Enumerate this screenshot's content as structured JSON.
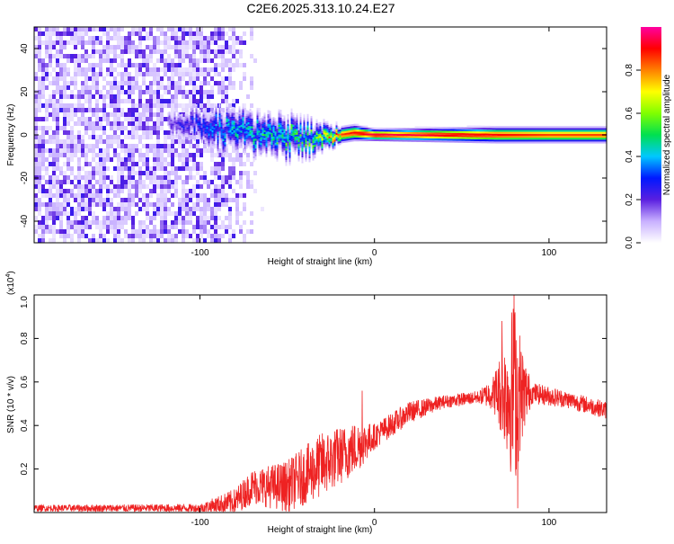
{
  "title": "C2E6.2025.313.10.24.E27",
  "chart_data": [
    {
      "type": "heatmap",
      "name": "spectrogram",
      "xlabel": "Height of straight line (km)",
      "ylabel": "Frequency (Hz)",
      "xlim": [
        -195,
        133
      ],
      "ylim": [
        -50,
        50
      ],
      "xticks": [
        -100,
        0,
        100
      ],
      "yticks": [
        -40,
        -20,
        0,
        20,
        40
      ],
      "noise_region": {
        "x_start": -195,
        "x_end": -90,
        "fade_end": -65
      },
      "track": [
        {
          "x": -118,
          "freq": 5,
          "spread": 3,
          "amp": 0.2
        },
        {
          "x": -100,
          "freq": 5,
          "spread": 4,
          "amp": 0.3
        },
        {
          "x": -90,
          "freq": 3,
          "spread": 5,
          "amp": 0.4
        },
        {
          "x": -70,
          "freq": 1,
          "spread": 5,
          "amp": 0.45
        },
        {
          "x": -50,
          "freq": -1,
          "spread": 5,
          "amp": 0.5
        },
        {
          "x": -35,
          "freq": -2,
          "spread": 4,
          "amp": 0.55
        },
        {
          "x": -20,
          "freq": 0,
          "spread": 2,
          "amp": 0.85
        },
        {
          "x": -12,
          "freq": 1,
          "spread": 2,
          "amp": 0.9
        },
        {
          "x": 0,
          "freq": 0,
          "spread": 1.5,
          "amp": 0.95
        },
        {
          "x": 70,
          "freq": 0,
          "spread": 2,
          "amp": 0.9
        },
        {
          "x": 100,
          "freq": 0,
          "spread": 2,
          "amp": 0.85
        },
        {
          "x": 133,
          "freq": 0,
          "spread": 2,
          "amp": 0.85
        }
      ],
      "colorbar": {
        "label": "Normalized spectral amplitude",
        "ticks": [
          0.0,
          0.2,
          0.4,
          0.6,
          0.8
        ],
        "tick_labels": [
          "0.0",
          "0.2",
          "0.4",
          "0.6",
          "0.8"
        ],
        "range": [
          0,
          1
        ],
        "colors": [
          "#ffffff",
          "#c8b0ff",
          "#5a1fe0",
          "#0018ff",
          "#00c8ff",
          "#00e050",
          "#80ff00",
          "#ffff00",
          "#ff8000",
          "#ff0000",
          "#ff00a0"
        ]
      }
    },
    {
      "type": "line",
      "name": "snr",
      "xlabel": "Height of straight line (km)",
      "ylabel": "SNR (10 * v/v)",
      "scale_label": "(x10",
      "scale_exponent": "4",
      "scale_suffix": ")",
      "xlim": [
        -195,
        133
      ],
      "ylim": [
        0,
        1.0
      ],
      "xticks": [
        -100,
        0,
        100
      ],
      "yticks": [
        0.2,
        0.4,
        0.6,
        0.8,
        1.0
      ],
      "ytick_labels": [
        "0.2",
        "0.4",
        "0.6",
        "0.8",
        "1.0"
      ],
      "color": "#ee2222",
      "envelope": [
        {
          "x": -195,
          "base": 0.02,
          "noise": 0.015
        },
        {
          "x": -100,
          "base": 0.02,
          "noise": 0.02
        },
        {
          "x": -80,
          "base": 0.05,
          "noise": 0.06
        },
        {
          "x": -70,
          "base": 0.12,
          "noise": 0.08
        },
        {
          "x": -50,
          "base": 0.12,
          "noise": 0.12
        },
        {
          "x": -30,
          "base": 0.22,
          "noise": 0.15
        },
        {
          "x": -10,
          "base": 0.3,
          "noise": 0.12
        },
        {
          "x": 0,
          "base": 0.35,
          "noise": 0.06
        },
        {
          "x": 20,
          "base": 0.46,
          "noise": 0.05
        },
        {
          "x": 40,
          "base": 0.51,
          "noise": 0.03
        },
        {
          "x": 60,
          "base": 0.53,
          "noise": 0.03
        },
        {
          "x": 68,
          "base": 0.55,
          "noise": 0.08
        },
        {
          "x": 75,
          "base": 0.55,
          "noise": 0.25
        },
        {
          "x": 80,
          "base": 0.55,
          "noise": 0.45
        },
        {
          "x": 85,
          "base": 0.55,
          "noise": 0.2
        },
        {
          "x": 90,
          "base": 0.55,
          "noise": 0.05
        },
        {
          "x": 110,
          "base": 0.52,
          "noise": 0.04
        },
        {
          "x": 133,
          "base": 0.47,
          "noise": 0.04
        }
      ],
      "spikes": [
        {
          "x": -7,
          "y": 0.56
        },
        {
          "x": 73,
          "y": 0.88
        },
        {
          "x": 80,
          "y": 1.0
        },
        {
          "x": 82,
          "y": 0.02
        }
      ]
    }
  ]
}
